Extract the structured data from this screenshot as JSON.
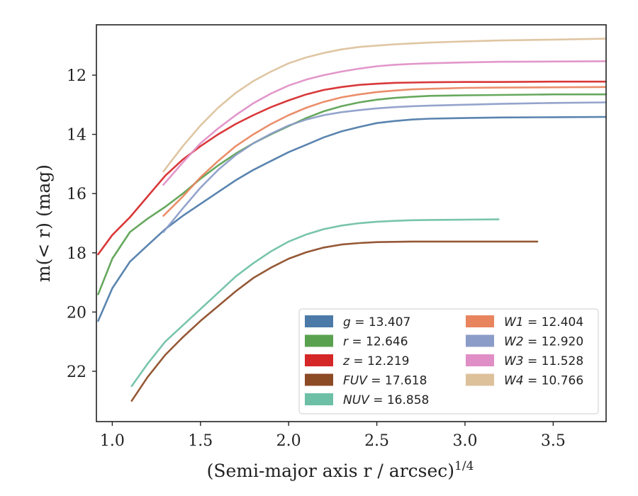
{
  "chart_data": {
    "type": "line",
    "xlabel": "(Semi-major axis r / arcsec)",
    "xlabel_superscript": "1/4",
    "ylabel": "m(< r) (mag)",
    "xlim": [
      0.91,
      3.8
    ],
    "ylim": [
      23.7,
      10.3
    ],
    "y_inverted": true,
    "x_ticks": [
      1.0,
      1.5,
      2.0,
      2.5,
      3.0,
      3.5
    ],
    "x_tick_labels": [
      "1.0",
      "1.5",
      "2.0",
      "2.5",
      "3.0",
      "3.5"
    ],
    "y_ticks": [
      12,
      14,
      16,
      18,
      20,
      22
    ],
    "y_tick_labels": [
      "12",
      "14",
      "16",
      "18",
      "20",
      "22"
    ],
    "grid": false,
    "legend_position": "lower-right",
    "legend_columns": 2,
    "series": [
      {
        "name": "g = 13.407",
        "color": "#4c7aa8",
        "x": [
          0.92,
          1.0,
          1.1,
          1.2,
          1.3,
          1.4,
          1.5,
          1.6,
          1.7,
          1.8,
          1.9,
          2.0,
          2.1,
          2.2,
          2.3,
          2.4,
          2.5,
          2.6,
          2.7,
          2.8,
          3.0,
          3.2,
          3.5,
          3.8
        ],
        "y": [
          20.3,
          19.2,
          18.3,
          17.75,
          17.2,
          16.75,
          16.35,
          15.95,
          15.55,
          15.2,
          14.9,
          14.6,
          14.35,
          14.1,
          13.9,
          13.75,
          13.62,
          13.55,
          13.5,
          13.47,
          13.45,
          13.43,
          13.42,
          13.41
        ]
      },
      {
        "name": "r = 12.646",
        "color": "#59a14f",
        "x": [
          0.92,
          1.0,
          1.1,
          1.2,
          1.3,
          1.4,
          1.5,
          1.6,
          1.7,
          1.8,
          1.9,
          2.0,
          2.1,
          2.2,
          2.3,
          2.4,
          2.5,
          2.6,
          2.7,
          2.8,
          3.0,
          3.2,
          3.5,
          3.8
        ],
        "y": [
          19.4,
          18.2,
          17.3,
          16.85,
          16.45,
          16.0,
          15.5,
          15.05,
          14.65,
          14.3,
          14.0,
          13.72,
          13.45,
          13.22,
          13.05,
          12.92,
          12.83,
          12.77,
          12.73,
          12.7,
          12.68,
          12.67,
          12.65,
          12.65
        ]
      },
      {
        "name": "z = 12.219",
        "color": "#d62728",
        "x": [
          0.92,
          1.0,
          1.1,
          1.2,
          1.3,
          1.4,
          1.5,
          1.6,
          1.7,
          1.8,
          1.9,
          2.0,
          2.1,
          2.2,
          2.3,
          2.4,
          2.5,
          2.6,
          2.7,
          2.8,
          3.0,
          3.2,
          3.5,
          3.8
        ],
        "y": [
          18.05,
          17.4,
          16.8,
          16.1,
          15.4,
          14.85,
          14.4,
          14.0,
          13.65,
          13.35,
          13.08,
          12.85,
          12.65,
          12.5,
          12.4,
          12.33,
          12.29,
          12.26,
          12.25,
          12.24,
          12.23,
          12.23,
          12.22,
          12.22
        ]
      },
      {
        "name": "FUV = 17.618",
        "color": "#8c4a25",
        "x": [
          1.11,
          1.2,
          1.3,
          1.4,
          1.5,
          1.6,
          1.7,
          1.8,
          1.9,
          2.0,
          2.1,
          2.2,
          2.3,
          2.4,
          2.5,
          2.6,
          2.7,
          2.8,
          3.0,
          3.2,
          3.41
        ],
        "y": [
          23.0,
          22.2,
          21.45,
          20.85,
          20.3,
          19.8,
          19.3,
          18.85,
          18.5,
          18.2,
          17.98,
          17.82,
          17.72,
          17.67,
          17.64,
          17.63,
          17.62,
          17.62,
          17.62,
          17.62,
          17.62
        ]
      },
      {
        "name": "NUV = 16.858",
        "color": "#6dbfa5",
        "x": [
          1.11,
          1.2,
          1.3,
          1.4,
          1.5,
          1.6,
          1.7,
          1.8,
          1.9,
          2.0,
          2.1,
          2.2,
          2.3,
          2.4,
          2.5,
          2.6,
          2.7,
          2.8,
          3.0,
          3.19
        ],
        "y": [
          22.5,
          21.75,
          21.0,
          20.45,
          19.9,
          19.35,
          18.8,
          18.35,
          17.95,
          17.62,
          17.38,
          17.2,
          17.08,
          17.0,
          16.95,
          16.92,
          16.9,
          16.89,
          16.88,
          16.87
        ]
      },
      {
        "name": "W1 = 12.404",
        "color": "#e8845e",
        "x": [
          1.29,
          1.4,
          1.5,
          1.6,
          1.7,
          1.8,
          1.9,
          2.0,
          2.1,
          2.2,
          2.3,
          2.4,
          2.5,
          2.6,
          2.7,
          2.8,
          3.0,
          3.2,
          3.5,
          3.8
        ],
        "y": [
          16.75,
          16.1,
          15.45,
          14.9,
          14.4,
          14.0,
          13.65,
          13.35,
          13.1,
          12.9,
          12.75,
          12.65,
          12.57,
          12.52,
          12.48,
          12.46,
          12.43,
          12.42,
          12.41,
          12.4
        ]
      },
      {
        "name": "W2 = 12.920",
        "color": "#8b9cc8",
        "x": [
          1.29,
          1.4,
          1.5,
          1.6,
          1.7,
          1.8,
          1.9,
          2.0,
          2.1,
          2.2,
          2.3,
          2.4,
          2.5,
          2.6,
          2.7,
          2.8,
          3.0,
          3.2,
          3.5,
          3.8
        ],
        "y": [
          17.3,
          16.5,
          15.8,
          15.2,
          14.7,
          14.3,
          13.98,
          13.7,
          13.5,
          13.35,
          13.25,
          13.18,
          13.12,
          13.08,
          13.05,
          13.03,
          13.0,
          12.97,
          12.94,
          12.92
        ]
      },
      {
        "name": "W3 = 11.528",
        "color": "#e08ec6",
        "x": [
          1.29,
          1.4,
          1.5,
          1.6,
          1.7,
          1.8,
          1.9,
          2.0,
          2.1,
          2.2,
          2.3,
          2.4,
          2.5,
          2.6,
          2.7,
          2.8,
          3.0,
          3.2,
          3.5,
          3.8
        ],
        "y": [
          15.7,
          14.95,
          14.3,
          13.8,
          13.35,
          12.95,
          12.62,
          12.35,
          12.15,
          12.0,
          11.88,
          11.78,
          11.7,
          11.65,
          11.62,
          11.6,
          11.57,
          11.55,
          11.54,
          11.53
        ]
      },
      {
        "name": "W4 = 10.766",
        "color": "#dcc19b",
        "x": [
          1.29,
          1.4,
          1.5,
          1.6,
          1.7,
          1.8,
          1.9,
          2.0,
          2.1,
          2.2,
          2.3,
          2.4,
          2.5,
          2.6,
          2.7,
          2.8,
          3.0,
          3.2,
          3.5,
          3.8
        ],
        "y": [
          15.25,
          14.4,
          13.7,
          13.1,
          12.6,
          12.2,
          11.88,
          11.6,
          11.4,
          11.25,
          11.13,
          11.05,
          11.0,
          10.96,
          10.93,
          10.9,
          10.86,
          10.83,
          10.8,
          10.77
        ]
      }
    ],
    "legend": [
      {
        "sym": "g",
        "value": " = 13.407",
        "color": "#4c7aa8"
      },
      {
        "sym": "r",
        "value": " = 12.646",
        "color": "#59a14f"
      },
      {
        "sym": "z",
        "value": " = 12.219",
        "color": "#d62728"
      },
      {
        "sym": "FUV",
        "value": " = 17.618",
        "color": "#8c4a25"
      },
      {
        "sym": "NUV",
        "value": " = 16.858",
        "color": "#6dbfa5"
      },
      {
        "sym": "W1",
        "value": " = 12.404",
        "color": "#e8845e"
      },
      {
        "sym": "W2",
        "value": " = 12.920",
        "color": "#8b9cc8"
      },
      {
        "sym": "W3",
        "value": " = 11.528",
        "color": "#e08ec6"
      },
      {
        "sym": "W4",
        "value": " = 10.766",
        "color": "#dcc19b"
      }
    ]
  }
}
